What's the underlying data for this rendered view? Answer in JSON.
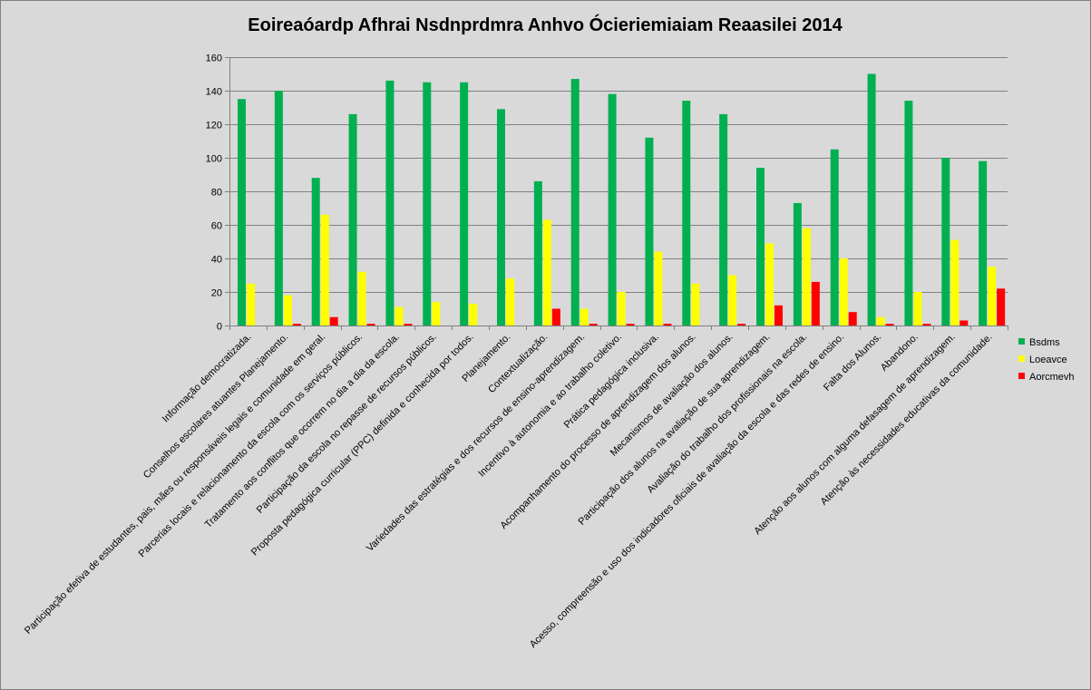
{
  "chart_data": {
    "type": "bar",
    "title": "Eoireaóardp Afhrai Nsdnprdmra Anhvo Ócieriemiaiam Reaasilei 2014",
    "xlabel": "",
    "ylabel": "",
    "ylim": [
      0,
      160
    ],
    "yticks": [
      0,
      20,
      40,
      60,
      80,
      100,
      120,
      140,
      160
    ],
    "grid": true,
    "legend_position": "right",
    "categories": [
      "Informação democratizada.",
      "Conselhos escolares atuantes Planejamento.",
      "Participação efetiva de estudantes, pais, mães ou responsáveis legais e comunidade em geral.",
      "Parcerias locais e relacionamento da escola com os serviços públicos.",
      "Tratamento aos conflitos que ocorrem no dia a dia da escola.",
      "Participação da escola no repasse de recursos públicos.",
      "Proposta pedagógica curricular (PPC) definida e conhecida por todos.",
      "Planejamento.",
      "Contextualização.",
      "Variedades das estratégias e dos recursos de ensino-aprendizagem.",
      "Incentivo à autonomia e ao trabalho coletivo.",
      "Prática pedagógica inclusiva.",
      "Acompanhamento do processo de aprendizagem dos alunos.",
      "Mecanismos de avaliação dos alunos.",
      "Participação dos alunos na avaliação de sua aprendizagem.",
      "Avaliação do trabalho dos profissionais na escola.",
      "Acesso, compreensão e uso dos indicadores oficiais de avaliação da escola e das redes de ensino.",
      "Falta dos Alunos.",
      "Abandono.",
      "Atenção aos alunos com alguma defasagem de aprendizagem.",
      "Atenção às necessidades educativas da comunidade."
    ],
    "series": [
      {
        "name": "Bsdms",
        "color": "#00b050",
        "values": [
          135,
          140,
          88,
          126,
          146,
          145,
          145,
          129,
          86,
          147,
          138,
          112,
          134,
          126,
          94,
          73,
          105,
          150,
          134,
          100,
          98
        ]
      },
      {
        "name": "Loeavce",
        "color": "#ffff00",
        "values": [
          25,
          18,
          66,
          32,
          11,
          14,
          13,
          28,
          63,
          10,
          20,
          44,
          25,
          30,
          49,
          58,
          40,
          5,
          20,
          51,
          35
        ]
      },
      {
        "name": "Aorcmevh",
        "color": "#ff0000",
        "values": [
          0,
          1,
          5,
          1,
          1,
          0,
          0,
          0,
          10,
          1,
          1,
          1,
          0,
          1,
          12,
          26,
          8,
          1,
          1,
          3,
          22
        ]
      }
    ]
  }
}
